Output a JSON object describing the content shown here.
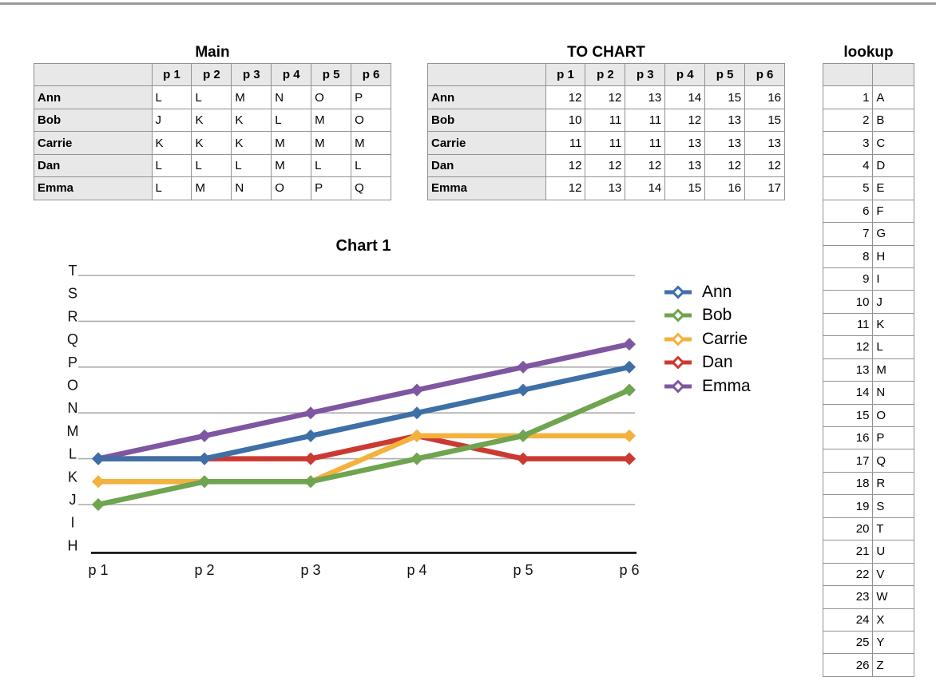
{
  "tables": {
    "main": {
      "title": "Main",
      "columns": [
        "p 1",
        "p 2",
        "p 3",
        "p 4",
        "p 5",
        "p 6"
      ],
      "rows": [
        {
          "label": "Ann",
          "values": [
            "L",
            "L",
            "M",
            "N",
            "O",
            "P"
          ]
        },
        {
          "label": "Bob",
          "values": [
            "J",
            "K",
            "K",
            "L",
            "M",
            "O"
          ]
        },
        {
          "label": "Carrie",
          "values": [
            "K",
            "K",
            "K",
            "M",
            "M",
            "M"
          ]
        },
        {
          "label": "Dan",
          "values": [
            "L",
            "L",
            "L",
            "M",
            "L",
            "L"
          ]
        },
        {
          "label": "Emma",
          "values": [
            "L",
            "M",
            "N",
            "O",
            "P",
            "Q"
          ]
        }
      ]
    },
    "to_chart": {
      "title": "TO CHART",
      "columns": [
        "p 1",
        "p 2",
        "p 3",
        "p 4",
        "p 5",
        "p 6"
      ],
      "rows": [
        {
          "label": "Ann",
          "values": [
            12,
            12,
            13,
            14,
            15,
            16
          ]
        },
        {
          "label": "Bob",
          "values": [
            10,
            11,
            11,
            12,
            13,
            15
          ]
        },
        {
          "label": "Carrie",
          "values": [
            11,
            11,
            11,
            13,
            13,
            13
          ]
        },
        {
          "label": "Dan",
          "values": [
            12,
            12,
            12,
            13,
            12,
            12
          ]
        },
        {
          "label": "Emma",
          "values": [
            12,
            13,
            14,
            15,
            16,
            17
          ]
        }
      ]
    },
    "lookup": {
      "title": "lookup",
      "rows": [
        [
          1,
          "A"
        ],
        [
          2,
          "B"
        ],
        [
          3,
          "C"
        ],
        [
          4,
          "D"
        ],
        [
          5,
          "E"
        ],
        [
          6,
          "F"
        ],
        [
          7,
          "G"
        ],
        [
          8,
          "H"
        ],
        [
          9,
          "I"
        ],
        [
          10,
          "J"
        ],
        [
          11,
          "K"
        ],
        [
          12,
          "L"
        ],
        [
          13,
          "M"
        ],
        [
          14,
          "N"
        ],
        [
          15,
          "O"
        ],
        [
          16,
          "P"
        ],
        [
          17,
          "Q"
        ],
        [
          18,
          "R"
        ],
        [
          19,
          "S"
        ],
        [
          20,
          "T"
        ],
        [
          21,
          "U"
        ],
        [
          22,
          "V"
        ],
        [
          23,
          "W"
        ],
        [
          24,
          "X"
        ],
        [
          25,
          "Y"
        ],
        [
          26,
          "Z"
        ]
      ]
    }
  },
  "chart_data": {
    "type": "line",
    "title": "Chart 1",
    "categories": [
      "p 1",
      "p 2",
      "p 3",
      "p 4",
      "p 5",
      "p 6"
    ],
    "series": [
      {
        "name": "Ann",
        "color": "#3E6FA7",
        "values": [
          12,
          12,
          13,
          14,
          15,
          16
        ]
      },
      {
        "name": "Bob",
        "color": "#6FA450",
        "values": [
          10,
          11,
          11,
          12,
          13,
          15
        ]
      },
      {
        "name": "Carrie",
        "color": "#F3B13E",
        "values": [
          11,
          11,
          11,
          13,
          13,
          13
        ]
      },
      {
        "name": "Dan",
        "color": "#CB3A32",
        "values": [
          12,
          12,
          12,
          13,
          12,
          12
        ]
      },
      {
        "name": "Emma",
        "color": "#7F56A1",
        "values": [
          12,
          13,
          14,
          15,
          16,
          17
        ]
      }
    ],
    "y_axis": {
      "min": 8,
      "max": 20,
      "tick_labels": [
        "H",
        "I",
        "J",
        "K",
        "L",
        "M",
        "N",
        "O",
        "P",
        "Q",
        "R",
        "S",
        "T"
      ],
      "gridline_values": [
        10,
        12,
        14,
        16,
        18,
        20
      ]
    },
    "legend_position": "right",
    "grid_on": true,
    "grid_color": "#acacac",
    "axis_color": "#000000",
    "marker": "diamond"
  }
}
